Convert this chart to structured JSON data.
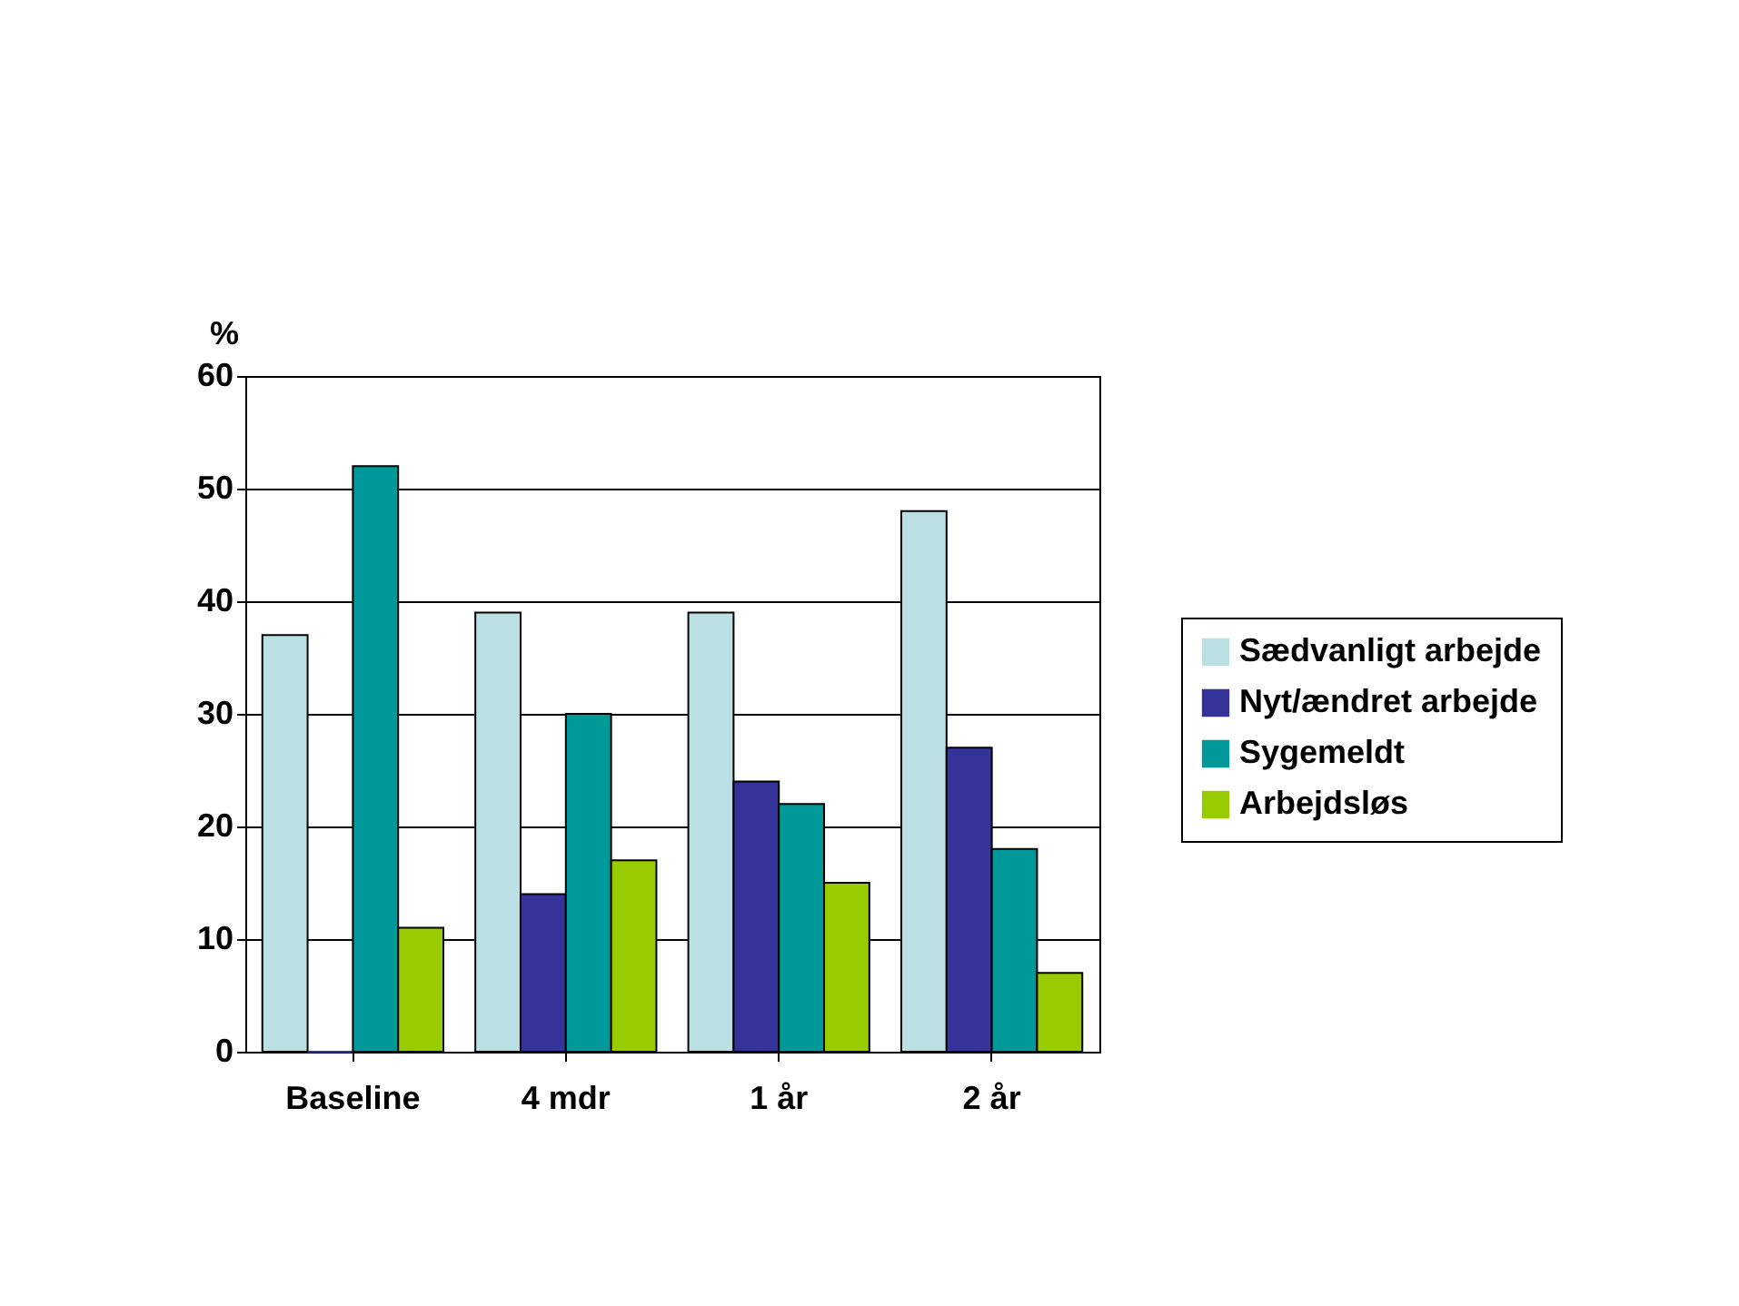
{
  "chart_data": {
    "type": "bar",
    "ylabel": "%",
    "categories": [
      "Baseline",
      "4 mdr",
      "1 år",
      "2 år"
    ],
    "series": [
      {
        "name": "Sædvanligt arbejde",
        "color": "#bbe0e3",
        "values": [
          37,
          39,
          39,
          48
        ]
      },
      {
        "name": "Nyt/ændret arbejde",
        "color": "#333399",
        "values": [
          0,
          14,
          24,
          27
        ]
      },
      {
        "name": "Sygemeldt",
        "color": "#009999",
        "values": [
          52,
          30,
          22,
          18
        ]
      },
      {
        "name": "Arbejdsløs",
        "color": "#99cc00",
        "values": [
          11,
          17,
          15,
          7
        ]
      }
    ],
    "ylim": [
      0,
      60
    ],
    "yticks": [
      0,
      10,
      20,
      30,
      40,
      50,
      60
    ],
    "grid": "y",
    "legend": "right"
  }
}
